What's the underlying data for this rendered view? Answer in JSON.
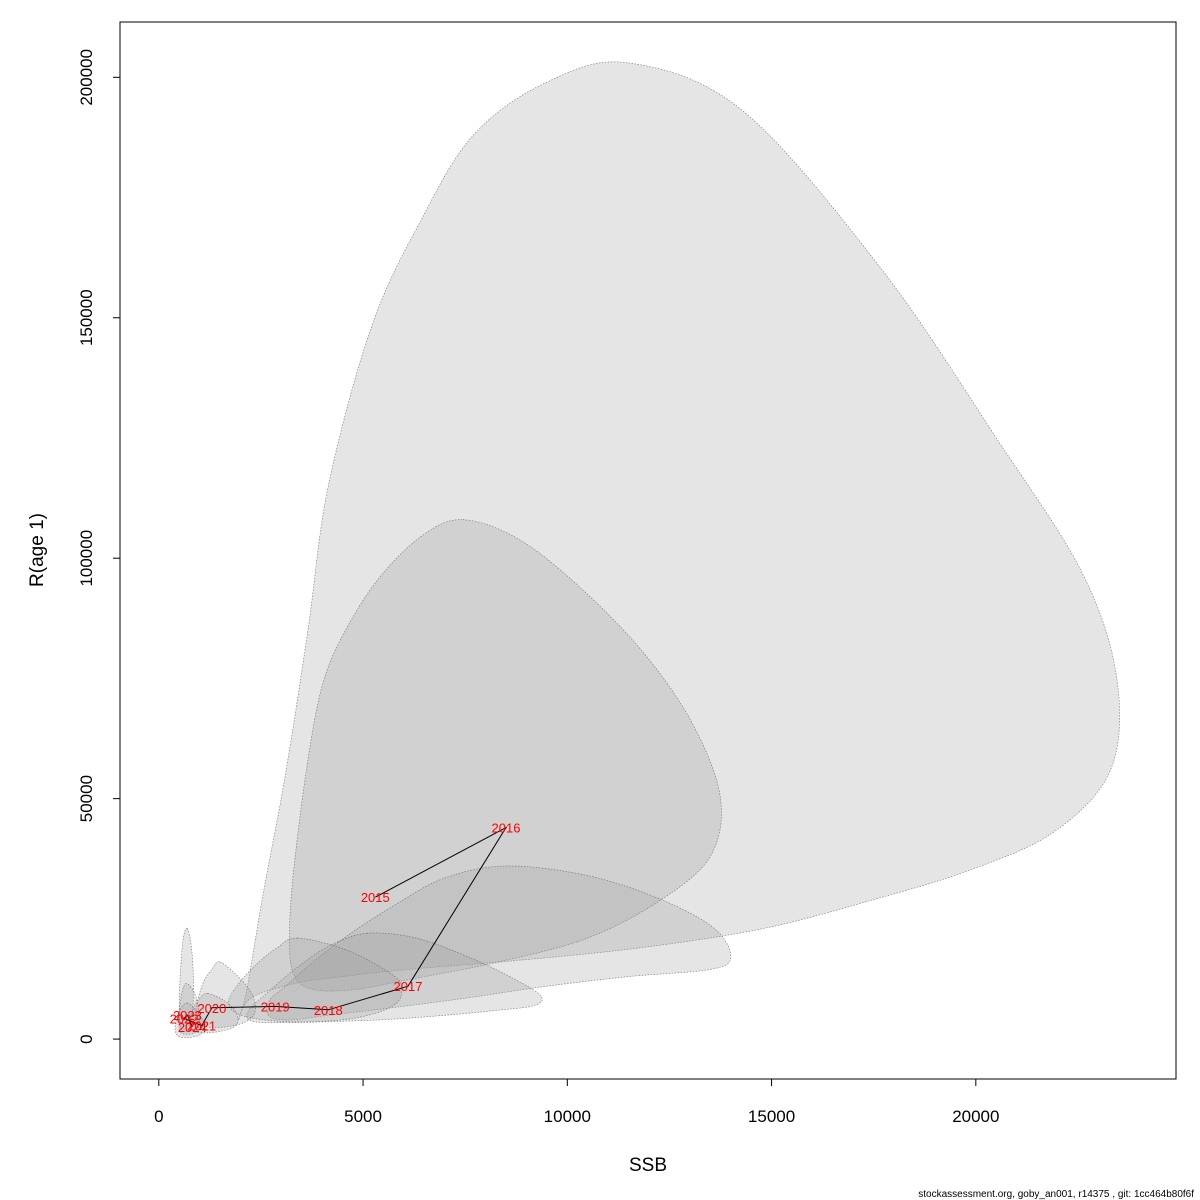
{
  "chart_data": {
    "type": "scatter",
    "title": "",
    "xlabel": "SSB",
    "ylabel": "R(age 1)",
    "xlim": [
      -950,
      24900
    ],
    "ylim": [
      -8300,
      211500
    ],
    "grid": false,
    "legend": "none",
    "x_ticks": [
      0,
      5000,
      10000,
      15000,
      20000
    ],
    "y_ticks": [
      0,
      50000,
      100000,
      150000,
      200000
    ],
    "x_tick_labels": [
      "0",
      "5000",
      "10000",
      "15000",
      "20000"
    ],
    "y_tick_labels": [
      "0",
      "50000",
      "100000",
      "150000",
      "200000"
    ],
    "trajectory": {
      "years": [
        "2015",
        "2016",
        "2017",
        "2018",
        "2019",
        "2020",
        "2021",
        "2022",
        "2023",
        "2024"
      ],
      "ssb": [
        5300,
        8500,
        6100,
        4150,
        2850,
        1300,
        1050,
        620,
        700,
        820
      ],
      "recruitment": [
        29500,
        44000,
        11000,
        6100,
        6800,
        6500,
        2800,
        4300,
        5000,
        2500
      ]
    },
    "confidence_regions": [
      {
        "year": "2016",
        "points": [
          [
            11500,
            203000
          ],
          [
            14300,
            193000
          ],
          [
            17700,
            160000
          ],
          [
            20500,
            125000
          ],
          [
            22600,
            97000
          ],
          [
            23450,
            75000
          ],
          [
            23300,
            56000
          ],
          [
            21900,
            43000
          ],
          [
            19800,
            35000
          ],
          [
            17500,
            29000
          ],
          [
            14800,
            23000
          ],
          [
            11800,
            19000
          ],
          [
            8700,
            16300
          ],
          [
            6100,
            14500
          ],
          [
            4500,
            13000
          ],
          [
            3300,
            11500
          ],
          [
            2250,
            8500
          ],
          [
            1950,
            4000
          ],
          [
            2150,
            10000
          ],
          [
            2550,
            30000
          ],
          [
            3100,
            55000
          ],
          [
            3650,
            85000
          ],
          [
            4150,
            115000
          ],
          [
            5200,
            148000
          ],
          [
            6400,
            170000
          ],
          [
            7700,
            188000
          ],
          [
            9500,
            199000
          ]
        ]
      },
      {
        "year": "2015",
        "points": [
          [
            7450,
            108000
          ],
          [
            8800,
            104000
          ],
          [
            10300,
            94000
          ],
          [
            11900,
            80000
          ],
          [
            13100,
            65000
          ],
          [
            13750,
            50000
          ],
          [
            13500,
            38000
          ],
          [
            12300,
            29000
          ],
          [
            10500,
            21000
          ],
          [
            8300,
            16000
          ],
          [
            6200,
            12500
          ],
          [
            4700,
            10200
          ],
          [
            3700,
            10500
          ],
          [
            3280,
            14000
          ],
          [
            3200,
            22000
          ],
          [
            3300,
            35000
          ],
          [
            3650,
            58000
          ],
          [
            4050,
            75000
          ],
          [
            4700,
            87000
          ],
          [
            5500,
            97000
          ],
          [
            6500,
            105000
          ]
        ]
      },
      {
        "year": "2017",
        "points": [
          [
            8500,
            36000
          ],
          [
            10500,
            34000
          ],
          [
            12300,
            29000
          ],
          [
            13600,
            23000
          ],
          [
            14000,
            17000
          ],
          [
            13500,
            14500
          ],
          [
            11500,
            13000
          ],
          [
            9500,
            11000
          ],
          [
            7500,
            8500
          ],
          [
            5700,
            6500
          ],
          [
            4200,
            5000
          ],
          [
            3200,
            4000
          ],
          [
            2700,
            4800
          ],
          [
            2700,
            8000
          ],
          [
            3100,
            11000
          ],
          [
            3700,
            15500
          ],
          [
            4700,
            22000
          ],
          [
            5800,
            28000
          ],
          [
            7000,
            33500
          ]
        ]
      },
      {
        "year": "2018",
        "points": [
          [
            5100,
            22000
          ],
          [
            6300,
            21000
          ],
          [
            7600,
            17000
          ],
          [
            8700,
            12500
          ],
          [
            9350,
            9000
          ],
          [
            9200,
            7000
          ],
          [
            8300,
            6000
          ],
          [
            6800,
            4800
          ],
          [
            5400,
            4000
          ],
          [
            4000,
            3600
          ],
          [
            3000,
            3400
          ],
          [
            2250,
            3800
          ],
          [
            2200,
            6000
          ],
          [
            2700,
            10000
          ],
          [
            3400,
            15000
          ],
          [
            4200,
            19500
          ]
        ]
      },
      {
        "year": "2019",
        "points": [
          [
            3400,
            21000
          ],
          [
            4600,
            18500
          ],
          [
            5700,
            13500
          ],
          [
            5950,
            10500
          ],
          [
            5750,
            7000
          ],
          [
            4900,
            4500
          ],
          [
            3800,
            3600
          ],
          [
            2800,
            3800
          ],
          [
            2000,
            5000
          ],
          [
            1700,
            7500
          ],
          [
            1950,
            11500
          ],
          [
            2450,
            16000
          ],
          [
            2900,
            19000
          ]
        ]
      },
      {
        "year": "2020",
        "points": [
          [
            1500,
            16000
          ],
          [
            2000,
            12500
          ],
          [
            2300,
            9000
          ],
          [
            2350,
            5500
          ],
          [
            2100,
            3500
          ],
          [
            1600,
            2500
          ],
          [
            1100,
            2700
          ],
          [
            900,
            4500
          ],
          [
            950,
            8000
          ],
          [
            1100,
            12000
          ],
          [
            1300,
            14500
          ]
        ]
      },
      {
        "year": "2021",
        "points": [
          [
            1200,
            9500
          ],
          [
            1600,
            8000
          ],
          [
            1900,
            5500
          ],
          [
            1900,
            3000
          ],
          [
            1600,
            1800
          ],
          [
            1200,
            1300
          ],
          [
            850,
            1600
          ],
          [
            750,
            3500
          ],
          [
            850,
            6500
          ],
          [
            1000,
            8500
          ]
        ]
      },
      {
        "year": "2022",
        "points": [
          [
            700,
            23000
          ],
          [
            800,
            19000
          ],
          [
            850,
            12000
          ],
          [
            830,
            6000
          ],
          [
            760,
            2500
          ],
          [
            640,
            1500
          ],
          [
            530,
            2500
          ],
          [
            500,
            7000
          ],
          [
            530,
            14000
          ],
          [
            600,
            21000
          ]
        ]
      },
      {
        "year": "2023",
        "points": [
          [
            650,
            11500
          ],
          [
            850,
            10000
          ],
          [
            960,
            7000
          ],
          [
            1000,
            3500
          ],
          [
            900,
            1500
          ],
          [
            700,
            1000
          ],
          [
            520,
            1500
          ],
          [
            500,
            4000
          ],
          [
            530,
            8000
          ]
        ]
      },
      {
        "year": "2024",
        "points": [
          [
            700,
            7500
          ],
          [
            900,
            6000
          ],
          [
            1100,
            3500
          ],
          [
            1050,
            1200
          ],
          [
            800,
            400
          ],
          [
            500,
            500
          ],
          [
            400,
            2000
          ],
          [
            450,
            4500
          ],
          [
            550,
            6500
          ]
        ]
      }
    ]
  },
  "footer": {
    "text": "stockassessment.org, goby_an001, r14375 , git: 1cc464b80f6f"
  }
}
